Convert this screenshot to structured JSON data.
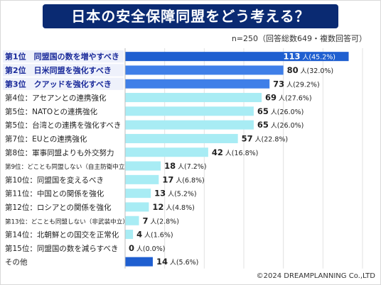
{
  "title": "日本の安全保障同盟をどう考える？",
  "subtitle": "n=250（回答総数649・複数回答可）",
  "footer": "©2024 DREAMPLANNING Co.,LTD",
  "colors": {
    "title_bg": "#0a2a72",
    "top3_bar": "#3f7fe8",
    "top1_bar": "#1f5fd0",
    "other_bar": "#a8ecf4",
    "misc_bar": "#1f5fd0",
    "top3_label": "#1a2a9a"
  },
  "chart_data": {
    "type": "bar",
    "orientation": "horizontal",
    "title": "日本の安全保障同盟をどう考える？",
    "unit": "人",
    "categories": [
      "第1位　同盟国の数を増やすべき",
      "第2位　日米同盟を強化すべき",
      "第3位　クアッドを強化すべき",
      "第4位：アセアンとの連携強化",
      "第5位：NATOとの連携強化",
      "第5位：台湾との連携を強化すべき",
      "第7位：EUとの連携強化",
      "第8位：軍事同盟よりも外交努力",
      "第9位：どことも同盟しない（自主防衛中立）",
      "第10位：同盟国を変えるべき",
      "第11位：中国との関係を強化",
      "第12位：ロシアとの関係を強化",
      "第13位：どことも同盟しない（非武装中立）",
      "第14位：北朝鮮との国交を正常化",
      "第15位：同盟国の数を減らすべき",
      "その他"
    ],
    "values": [
      113,
      80,
      73,
      69,
      65,
      65,
      57,
      42,
      18,
      17,
      13,
      12,
      7,
      4,
      0,
      14
    ],
    "percents": [
      "45.2%",
      "32.0%",
      "29.2%",
      "27.6%",
      "26.0%",
      "26.0%",
      "22.8%",
      "16.8%",
      "7.2%",
      "6.8%",
      "5.2%",
      "4.8%",
      "2.8%",
      "1.6%",
      "0.0%",
      "5.6%"
    ],
    "xlim": [
      0,
      120
    ],
    "grid": true
  }
}
